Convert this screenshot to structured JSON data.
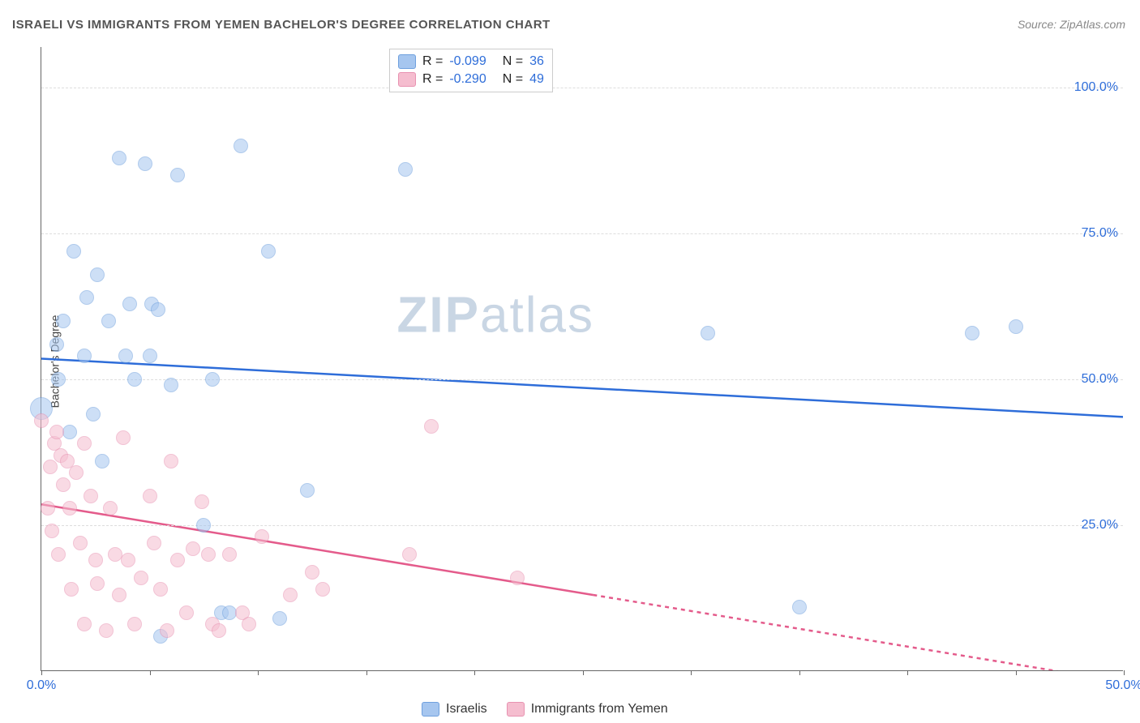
{
  "title": "ISRAELI VS IMMIGRANTS FROM YEMEN BACHELOR'S DEGREE CORRELATION CHART",
  "source_prefix": "Source: ",
  "source_name": "ZipAtlas.com",
  "watermark_text": {
    "bold": "ZIP",
    "light": "atlas"
  },
  "chart": {
    "type": "scatter",
    "background_color": "#ffffff",
    "grid_color": "#dddddd",
    "axis_color": "#666666",
    "xlim": [
      0,
      50
    ],
    "ylim": [
      0,
      107
    ],
    "x_tick_positions": [
      0,
      5,
      10,
      15,
      20,
      25,
      30,
      35,
      40,
      45,
      50
    ],
    "x_tick_labels": {
      "0": "0.0%",
      "50": "50.0%"
    },
    "y_grid": [
      {
        "v": 25,
        "label": "25.0%"
      },
      {
        "v": 50,
        "label": "50.0%"
      },
      {
        "v": 75,
        "label": "75.0%"
      },
      {
        "v": 100,
        "label": "100.0%"
      }
    ],
    "ylabel": "Bachelor's Degree",
    "label_color": "#444444",
    "tick_label_color": "#2e6dd9",
    "tick_fontsize": 16,
    "title_fontsize": 15,
    "title_color": "#555555",
    "marker_radius": 9,
    "marker_opacity": 0.55,
    "trend_stroke_width": 2.5,
    "series": [
      {
        "name": "Israelis",
        "fill": "#a6c6ef",
        "stroke": "#6fa0de",
        "trend_color": "#2e6dd9",
        "R": "-0.099",
        "N": "36",
        "trend": {
          "x1": 0,
          "y1": 53.5,
          "x2": 50,
          "y2": 43.5,
          "dashed_from_idx": null
        },
        "points": [
          {
            "x": 0.0,
            "y": 45,
            "r": 14
          },
          {
            "x": 0.7,
            "y": 56
          },
          {
            "x": 0.8,
            "y": 50
          },
          {
            "x": 1.0,
            "y": 60
          },
          {
            "x": 1.3,
            "y": 41
          },
          {
            "x": 1.5,
            "y": 72
          },
          {
            "x": 2.0,
            "y": 54
          },
          {
            "x": 2.1,
            "y": 64
          },
          {
            "x": 2.4,
            "y": 44
          },
          {
            "x": 2.6,
            "y": 68
          },
          {
            "x": 2.8,
            "y": 36
          },
          {
            "x": 3.1,
            "y": 60
          },
          {
            "x": 3.6,
            "y": 88
          },
          {
            "x": 3.9,
            "y": 54
          },
          {
            "x": 4.1,
            "y": 63
          },
          {
            "x": 4.3,
            "y": 50
          },
          {
            "x": 4.8,
            "y": 87
          },
          {
            "x": 5.0,
            "y": 54
          },
          {
            "x": 5.1,
            "y": 63
          },
          {
            "x": 5.4,
            "y": 62
          },
          {
            "x": 5.5,
            "y": 6
          },
          {
            "x": 6.0,
            "y": 49
          },
          {
            "x": 6.3,
            "y": 85
          },
          {
            "x": 7.5,
            "y": 25
          },
          {
            "x": 7.9,
            "y": 50
          },
          {
            "x": 8.3,
            "y": 10
          },
          {
            "x": 8.7,
            "y": 10
          },
          {
            "x": 9.2,
            "y": 90
          },
          {
            "x": 10.5,
            "y": 72
          },
          {
            "x": 11.0,
            "y": 9
          },
          {
            "x": 12.3,
            "y": 31
          },
          {
            "x": 16.8,
            "y": 86
          },
          {
            "x": 30.8,
            "y": 58
          },
          {
            "x": 35.0,
            "y": 11
          },
          {
            "x": 43.0,
            "y": 58
          },
          {
            "x": 45.0,
            "y": 59
          }
        ]
      },
      {
        "name": "Immigrants from Yemen",
        "fill": "#f5bdcf",
        "stroke": "#e892b1",
        "trend_color": "#e45b8b",
        "R": "-0.290",
        "N": "49",
        "trend": {
          "x1": 0,
          "y1": 28.5,
          "x2": 50,
          "y2": -2,
          "dashed_from_x": 25.5
        },
        "points": [
          {
            "x": 0.0,
            "y": 43
          },
          {
            "x": 0.3,
            "y": 28
          },
          {
            "x": 0.4,
            "y": 35
          },
          {
            "x": 0.5,
            "y": 24
          },
          {
            "x": 0.6,
            "y": 39
          },
          {
            "x": 0.7,
            "y": 41
          },
          {
            "x": 0.8,
            "y": 20
          },
          {
            "x": 0.9,
            "y": 37
          },
          {
            "x": 1.0,
            "y": 32
          },
          {
            "x": 1.2,
            "y": 36
          },
          {
            "x": 1.3,
            "y": 28
          },
          {
            "x": 1.4,
            "y": 14
          },
          {
            "x": 1.6,
            "y": 34
          },
          {
            "x": 1.8,
            "y": 22
          },
          {
            "x": 2.0,
            "y": 39
          },
          {
            "x": 2.0,
            "y": 8
          },
          {
            "x": 2.3,
            "y": 30
          },
          {
            "x": 2.5,
            "y": 19
          },
          {
            "x": 2.6,
            "y": 15
          },
          {
            "x": 3.0,
            "y": 7
          },
          {
            "x": 3.2,
            "y": 28
          },
          {
            "x": 3.4,
            "y": 20
          },
          {
            "x": 3.6,
            "y": 13
          },
          {
            "x": 3.8,
            "y": 40
          },
          {
            "x": 4.0,
            "y": 19
          },
          {
            "x": 4.3,
            "y": 8
          },
          {
            "x": 4.6,
            "y": 16
          },
          {
            "x": 5.0,
            "y": 30
          },
          {
            "x": 5.2,
            "y": 22
          },
          {
            "x": 5.5,
            "y": 14
          },
          {
            "x": 5.8,
            "y": 7
          },
          {
            "x": 6.0,
            "y": 36
          },
          {
            "x": 6.3,
            "y": 19
          },
          {
            "x": 6.7,
            "y": 10
          },
          {
            "x": 7.0,
            "y": 21
          },
          {
            "x": 7.4,
            "y": 29
          },
          {
            "x": 7.7,
            "y": 20
          },
          {
            "x": 7.9,
            "y": 8
          },
          {
            "x": 8.2,
            "y": 7
          },
          {
            "x": 8.7,
            "y": 20
          },
          {
            "x": 9.3,
            "y": 10
          },
          {
            "x": 9.6,
            "y": 8
          },
          {
            "x": 10.2,
            "y": 23
          },
          {
            "x": 11.5,
            "y": 13
          },
          {
            "x": 12.5,
            "y": 17
          },
          {
            "x": 13.0,
            "y": 14
          },
          {
            "x": 17.0,
            "y": 20
          },
          {
            "x": 18.0,
            "y": 42
          },
          {
            "x": 22.0,
            "y": 16
          }
        ]
      }
    ]
  },
  "legend_top": {
    "R_label": "R =",
    "N_label": "N ="
  },
  "legend_bottom": [
    {
      "swatch_fill": "#a6c6ef",
      "swatch_stroke": "#6fa0de",
      "label": "Israelis"
    },
    {
      "swatch_fill": "#f5bdcf",
      "swatch_stroke": "#e892b1",
      "label": "Immigrants from Yemen"
    }
  ]
}
